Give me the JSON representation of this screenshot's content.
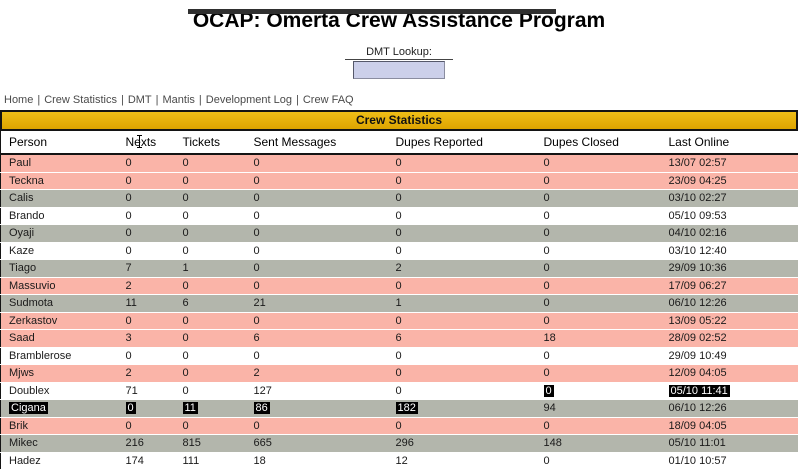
{
  "page": {
    "title": "OCAP: Omerta Crew Assistance Program"
  },
  "lookup": {
    "label": "DMT Lookup:",
    "value": ""
  },
  "nav": {
    "separator": "|",
    "items": [
      {
        "label": "Home"
      },
      {
        "label": "Crew Statistics"
      },
      {
        "label": "DMT"
      },
      {
        "label": "Mantis"
      },
      {
        "label": "Development Log"
      },
      {
        "label": "Crew FAQ"
      }
    ]
  },
  "table": {
    "title": "Crew Statistics",
    "columns": [
      "Person",
      "Nexts",
      "Tickets",
      "Sent Messages",
      "Dupes Reported",
      "Dupes Closed",
      "Last Online"
    ],
    "rows": [
      {
        "person": "Paul",
        "nexts": "0",
        "tickets": "0",
        "sent": "0",
        "dupes_reported": "0",
        "dupes_closed": "0",
        "last_online": "13/07 02:57",
        "row_style": "inactive",
        "selected": []
      },
      {
        "person": "Teckna",
        "nexts": "0",
        "tickets": "0",
        "sent": "0",
        "dupes_reported": "0",
        "dupes_closed": "0",
        "last_online": "23/09 04:25",
        "row_style": "inactive",
        "selected": []
      },
      {
        "person": "Calis",
        "nexts": "0",
        "tickets": "0",
        "sent": "0",
        "dupes_reported": "0",
        "dupes_closed": "0",
        "last_online": "03/10 02:27",
        "row_style": "alt",
        "selected": []
      },
      {
        "person": "Brando",
        "nexts": "0",
        "tickets": "0",
        "sent": "0",
        "dupes_reported": "0",
        "dupes_closed": "0",
        "last_online": "05/10 09:53",
        "row_style": "default",
        "selected": []
      },
      {
        "person": "Oyaji",
        "nexts": "0",
        "tickets": "0",
        "sent": "0",
        "dupes_reported": "0",
        "dupes_closed": "0",
        "last_online": "04/10 02:16",
        "row_style": "alt",
        "selected": []
      },
      {
        "person": "Kaze",
        "nexts": "0",
        "tickets": "0",
        "sent": "0",
        "dupes_reported": "0",
        "dupes_closed": "0",
        "last_online": "03/10 12:40",
        "row_style": "default",
        "selected": []
      },
      {
        "person": "Tiago",
        "nexts": "7",
        "tickets": "1",
        "sent": "0",
        "dupes_reported": "2",
        "dupes_closed": "0",
        "last_online": "29/09 10:36",
        "row_style": "alt",
        "selected": []
      },
      {
        "person": "Massuvio",
        "nexts": "2",
        "tickets": "0",
        "sent": "0",
        "dupes_reported": "0",
        "dupes_closed": "0",
        "last_online": "17/09 06:27",
        "row_style": "inactive",
        "selected": []
      },
      {
        "person": "Sudmota",
        "nexts": "11",
        "tickets": "6",
        "sent": "21",
        "dupes_reported": "1",
        "dupes_closed": "0",
        "last_online": "06/10 12:26",
        "row_style": "alt",
        "selected": []
      },
      {
        "person": "Zerkastov",
        "nexts": "0",
        "tickets": "0",
        "sent": "0",
        "dupes_reported": "0",
        "dupes_closed": "0",
        "last_online": "13/09 05:22",
        "row_style": "inactive",
        "selected": []
      },
      {
        "person": "Saad",
        "nexts": "3",
        "tickets": "0",
        "sent": "6",
        "dupes_reported": "6",
        "dupes_closed": "18",
        "last_online": "28/09 02:52",
        "row_style": "inactive",
        "selected": []
      },
      {
        "person": "Bramblerose",
        "nexts": "0",
        "tickets": "0",
        "sent": "0",
        "dupes_reported": "0",
        "dupes_closed": "0",
        "last_online": "29/09 10:49",
        "row_style": "default",
        "selected": []
      },
      {
        "person": "Mjws",
        "nexts": "2",
        "tickets": "0",
        "sent": "2",
        "dupes_reported": "0",
        "dupes_closed": "0",
        "last_online": "12/09 04:05",
        "row_style": "inactive",
        "selected": []
      },
      {
        "person": "Doublex",
        "nexts": "71",
        "tickets": "0",
        "sent": "127",
        "dupes_reported": "0",
        "dupes_closed": "0",
        "last_online": "05/10 11:41",
        "row_style": "default",
        "selected": [
          "dupes_closed",
          "last_online"
        ]
      },
      {
        "person": "Cigana",
        "nexts": "0",
        "tickets": "11",
        "sent": "86",
        "dupes_reported": "182",
        "dupes_closed": "94",
        "last_online": "06/10 12:26",
        "row_style": "alt",
        "selected": [
          "person",
          "nexts",
          "tickets",
          "sent",
          "dupes_reported"
        ]
      },
      {
        "person": "Brik",
        "nexts": "0",
        "tickets": "0",
        "sent": "0",
        "dupes_reported": "0",
        "dupes_closed": "0",
        "last_online": "18/09 04:05",
        "row_style": "inactive",
        "selected": []
      },
      {
        "person": "Mikec",
        "nexts": "216",
        "tickets": "815",
        "sent": "665",
        "dupes_reported": "296",
        "dupes_closed": "148",
        "last_online": "05/10 11:01",
        "row_style": "alt",
        "selected": []
      },
      {
        "person": "Hadez",
        "nexts": "174",
        "tickets": "111",
        "sent": "18",
        "dupes_reported": "12",
        "dupes_closed": "0",
        "last_online": "01/10 10:57",
        "row_style": "default",
        "selected": []
      }
    ]
  },
  "colors": {
    "header_gold": "#DDA400",
    "header_gold_light": "#EFBE17",
    "row_inactive": "#FAB4A8",
    "row_alt": "#B3B6AC",
    "row_default": "#FFFFFF",
    "selection_bg": "#000000",
    "selection_text": "#FFFFFF",
    "input_bg": "#CCD0EA"
  }
}
